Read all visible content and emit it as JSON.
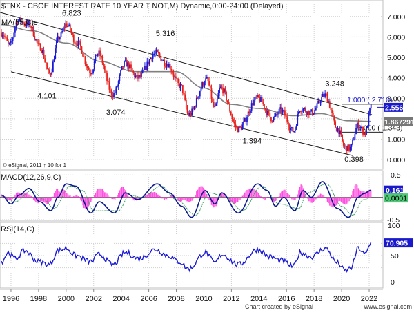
{
  "colors": {
    "up": "#1a1ad6",
    "down": "#e8201c",
    "ma": "#808080",
    "channel": "#1a1a1a",
    "macd_line": "#0a1a8c",
    "signal_line": "#3aa060",
    "histogram": "#ff4fe0",
    "rsi": "#1a1ad6",
    "current_box": "#1a1acc",
    "ma_box": "#777777",
    "macd_box": "#1a1acc",
    "signal_box": "#50c878",
    "rsi_box": "#1a1acc"
  },
  "footer": {
    "left": "Chart created by eSignal",
    "right": "www.esignal.com"
  },
  "chart_data": [
    {
      "type": "candlestick",
      "title": "$TNX - CBOE INTEREST RATE 10 YEAR T NOT,M) Dynamic,0:00-24:00 (Delayed)",
      "ma_label": "MA(55,C)s",
      "footnote": "© eSignal, 2011  ↑  10 for 1",
      "x_range": [
        1995.2,
        2022.6
      ],
      "ylim": [
        -0.3,
        7.6
      ],
      "y_ticks": [
        "7.000",
        "6.000",
        "5.000",
        "4.000",
        "3.000",
        "2.000",
        "1.000",
        "0.000"
      ],
      "x_ticks": [
        "1996",
        "1998",
        "2000",
        "2002",
        "2004",
        "2006",
        "2008",
        "2010",
        "2012",
        "2014",
        "2016",
        "2018",
        "2020",
        "2022"
      ],
      "anchors": [
        {
          "t": 1995.3,
          "v": 6.2
        },
        {
          "t": 1995.9,
          "v": 5.6
        },
        {
          "t": 1996.5,
          "v": 6.8
        },
        {
          "t": 1997.3,
          "v": 6.6
        },
        {
          "t": 1998.1,
          "v": 5.5
        },
        {
          "t": 1998.8,
          "v": 4.2
        },
        {
          "t": 1999.5,
          "v": 6.0
        },
        {
          "t": 2000.0,
          "v": 6.6
        },
        {
          "t": 2000.8,
          "v": 5.7
        },
        {
          "t": 2001.8,
          "v": 4.3
        },
        {
          "t": 2002.3,
          "v": 5.2
        },
        {
          "t": 2003.4,
          "v": 3.2
        },
        {
          "t": 2004.3,
          "v": 4.7
        },
        {
          "t": 2005.2,
          "v": 4.0
        },
        {
          "t": 2006.5,
          "v": 5.2
        },
        {
          "t": 2007.3,
          "v": 4.7
        },
        {
          "t": 2008.3,
          "v": 3.6
        },
        {
          "t": 2008.9,
          "v": 2.2
        },
        {
          "t": 2010.2,
          "v": 3.9
        },
        {
          "t": 2010.8,
          "v": 2.5
        },
        {
          "t": 2011.2,
          "v": 3.5
        },
        {
          "t": 2012.5,
          "v": 1.5
        },
        {
          "t": 2013.9,
          "v": 3.0
        },
        {
          "t": 2015.0,
          "v": 2.0
        },
        {
          "t": 2015.6,
          "v": 2.4
        },
        {
          "t": 2016.5,
          "v": 1.4
        },
        {
          "t": 2017.0,
          "v": 2.5
        },
        {
          "t": 2017.8,
          "v": 2.3
        },
        {
          "t": 2018.8,
          "v": 3.15
        },
        {
          "t": 2019.7,
          "v": 1.5
        },
        {
          "t": 2020.25,
          "v": 0.6
        },
        {
          "t": 2020.6,
          "v": 0.55
        },
        {
          "t": 2021.2,
          "v": 1.7
        },
        {
          "t": 2021.7,
          "v": 1.3
        },
        {
          "t": 2022.15,
          "v": 2.56
        }
      ],
      "ma_anchors": [
        {
          "t": 1995.3,
          "v": 6.6
        },
        {
          "t": 1997.5,
          "v": 6.3
        },
        {
          "t": 2000.0,
          "v": 5.7
        },
        {
          "t": 2002.5,
          "v": 4.8
        },
        {
          "t": 2005.0,
          "v": 4.3
        },
        {
          "t": 2008.0,
          "v": 4.3
        },
        {
          "t": 2010.0,
          "v": 3.5
        },
        {
          "t": 2012.0,
          "v": 2.7
        },
        {
          "t": 2014.0,
          "v": 2.5
        },
        {
          "t": 2016.5,
          "v": 2.15
        },
        {
          "t": 2018.5,
          "v": 2.25
        },
        {
          "t": 2020.5,
          "v": 1.9
        },
        {
          "t": 2022.15,
          "v": 1.87
        }
      ],
      "channel": {
        "upper": [
          {
            "t": 1995.2,
            "v": 7.2
          },
          {
            "t": 2022.2,
            "v": 2.2
          }
        ],
        "lower": [
          {
            "t": 1996.0,
            "v": 4.3
          },
          {
            "t": 2020.8,
            "v": 0.2
          }
        ]
      },
      "peak_labels": [
        {
          "text": "6.823",
          "t": 2000.4,
          "v": 7.05
        },
        {
          "text": "5.316",
          "t": 2007.2,
          "v": 6.05
        },
        {
          "text": "3.248",
          "t": 2019.5,
          "v": 3.6
        },
        {
          "text": "4.101",
          "t": 1998.6,
          "v": 3.0
        },
        {
          "text": "3.074",
          "t": 2003.6,
          "v": 2.2
        },
        {
          "text": "1.394",
          "t": 2013.5,
          "v": 0.8
        },
        {
          "text": "0.398",
          "t": 2020.9,
          "v": -0.1
        }
      ],
      "fib_levels": [
        {
          "label": "1.000 ( 2.710)",
          "v": 2.71,
          "t_start": 2020.0,
          "t_label": 2022.75
        },
        {
          "label": "0.000 ( 1.343)",
          "v": 1.343,
          "t_start": 2020.0,
          "t_label": 2022.75
        }
      ],
      "last_value": "2.556",
      "ma_value": "1.867291"
    },
    {
      "type": "line",
      "title": "MACD(12,26,9,C)",
      "ylim": [
        -0.5,
        0.55
      ],
      "y_ticks": [
        "0.5",
        "-0.5"
      ],
      "macd_anchors": [
        {
          "t": 1995.3,
          "v": 0.05
        },
        {
          "t": 1996.0,
          "v": -0.15
        },
        {
          "t": 1996.6,
          "v": 0.05
        },
        {
          "t": 1997.3,
          "v": 0.2
        },
        {
          "t": 1998.1,
          "v": -0.1
        },
        {
          "t": 1998.9,
          "v": -0.3
        },
        {
          "t": 1999.4,
          "v": 0.0
        },
        {
          "t": 2000.0,
          "v": 0.3
        },
        {
          "t": 2000.7,
          "v": 0.25
        },
        {
          "t": 2001.8,
          "v": -0.35
        },
        {
          "t": 2002.4,
          "v": -0.1
        },
        {
          "t": 2003.5,
          "v": -0.35
        },
        {
          "t": 2004.3,
          "v": 0.1
        },
        {
          "t": 2005.2,
          "v": -0.05
        },
        {
          "t": 2006.6,
          "v": 0.3
        },
        {
          "t": 2007.5,
          "v": 0.1
        },
        {
          "t": 2008.4,
          "v": -0.2
        },
        {
          "t": 2009.1,
          "v": -0.45
        },
        {
          "t": 2010.1,
          "v": 0.15
        },
        {
          "t": 2010.8,
          "v": -0.15
        },
        {
          "t": 2011.3,
          "v": 0.1
        },
        {
          "t": 2012.5,
          "v": -0.35
        },
        {
          "t": 2013.9,
          "v": 0.3
        },
        {
          "t": 2014.6,
          "v": 0.15
        },
        {
          "t": 2015.2,
          "v": -0.2
        },
        {
          "t": 2015.8,
          "v": 0.0
        },
        {
          "t": 2016.6,
          "v": -0.3
        },
        {
          "t": 2017.2,
          "v": 0.15
        },
        {
          "t": 2017.8,
          "v": 0.0
        },
        {
          "t": 2018.6,
          "v": 0.35
        },
        {
          "t": 2019.7,
          "v": -0.25
        },
        {
          "t": 2020.5,
          "v": -0.45
        },
        {
          "t": 2021.2,
          "v": 0.0
        },
        {
          "t": 2021.6,
          "v": 0.08
        },
        {
          "t": 2022.15,
          "v": 0.161
        }
      ],
      "signal_anchors": [
        {
          "t": 1995.3,
          "v": 0.0
        },
        {
          "t": 1996.3,
          "v": -0.1
        },
        {
          "t": 1997.5,
          "v": 0.15
        },
        {
          "t": 1998.4,
          "v": -0.05
        },
        {
          "t": 1999.1,
          "v": -0.25
        },
        {
          "t": 2000.3,
          "v": 0.25
        },
        {
          "t": 2001.2,
          "v": 0.15
        },
        {
          "t": 2002.0,
          "v": -0.3
        },
        {
          "t": 2003.8,
          "v": -0.3
        },
        {
          "t": 2004.6,
          "v": 0.05
        },
        {
          "t": 2005.5,
          "v": 0.0
        },
        {
          "t": 2006.9,
          "v": 0.25
        },
        {
          "t": 2008.0,
          "v": -0.05
        },
        {
          "t": 2009.4,
          "v": -0.4
        },
        {
          "t": 2010.4,
          "v": 0.1
        },
        {
          "t": 2011.6,
          "v": 0.0
        },
        {
          "t": 2012.8,
          "v": -0.3
        },
        {
          "t": 2014.2,
          "v": 0.25
        },
        {
          "t": 2015.5,
          "v": -0.15
        },
        {
          "t": 2016.9,
          "v": -0.25
        },
        {
          "t": 2017.5,
          "v": 0.1
        },
        {
          "t": 2018.9,
          "v": 0.3
        },
        {
          "t": 2020.0,
          "v": -0.2
        },
        {
          "t": 2020.8,
          "v": -0.4
        },
        {
          "t": 2021.6,
          "v": -0.05
        },
        {
          "t": 2022.15,
          "v": 0.0001
        }
      ],
      "macd_value": "0.161",
      "signal_value": "0.0001"
    },
    {
      "type": "line",
      "title": "RSI(14,C)",
      "ylim": [
        0,
        100
      ],
      "y_ticks": [
        "100",
        "50",
        "0"
      ],
      "rsi_anchors": [
        {
          "t": 1995.3,
          "v": 40
        },
        {
          "t": 1995.8,
          "v": 55
        },
        {
          "t": 1996.3,
          "v": 45
        },
        {
          "t": 1997.0,
          "v": 58
        },
        {
          "t": 1998.0,
          "v": 40
        },
        {
          "t": 1998.8,
          "v": 35
        },
        {
          "t": 1999.4,
          "v": 58
        },
        {
          "t": 2000.0,
          "v": 62
        },
        {
          "t": 2000.7,
          "v": 50
        },
        {
          "t": 2001.8,
          "v": 40
        },
        {
          "t": 2002.4,
          "v": 52
        },
        {
          "t": 2003.4,
          "v": 35
        },
        {
          "t": 2004.3,
          "v": 55
        },
        {
          "t": 2005.3,
          "v": 45
        },
        {
          "t": 2006.5,
          "v": 60
        },
        {
          "t": 2007.4,
          "v": 50
        },
        {
          "t": 2008.2,
          "v": 40
        },
        {
          "t": 2008.9,
          "v": 28
        },
        {
          "t": 2010.1,
          "v": 55
        },
        {
          "t": 2010.8,
          "v": 38
        },
        {
          "t": 2011.3,
          "v": 52
        },
        {
          "t": 2012.5,
          "v": 35
        },
        {
          "t": 2013.9,
          "v": 60
        },
        {
          "t": 2014.8,
          "v": 48
        },
        {
          "t": 2015.6,
          "v": 42
        },
        {
          "t": 2016.5,
          "v": 32
        },
        {
          "t": 2017.0,
          "v": 55
        },
        {
          "t": 2017.8,
          "v": 48
        },
        {
          "t": 2018.8,
          "v": 62
        },
        {
          "t": 2019.7,
          "v": 38
        },
        {
          "t": 2020.25,
          "v": 25
        },
        {
          "t": 2020.7,
          "v": 30
        },
        {
          "t": 2021.2,
          "v": 62
        },
        {
          "t": 2021.7,
          "v": 52
        },
        {
          "t": 2022.15,
          "v": 70.905
        }
      ],
      "rsi_value": "70.905"
    }
  ]
}
